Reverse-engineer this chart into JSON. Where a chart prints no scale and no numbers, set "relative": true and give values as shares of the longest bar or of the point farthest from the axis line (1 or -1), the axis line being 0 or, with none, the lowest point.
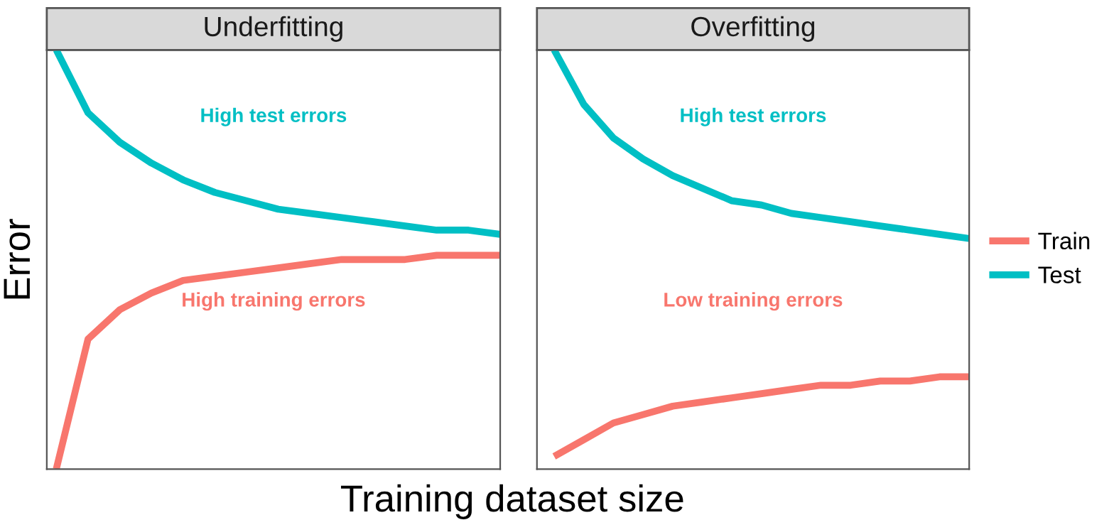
{
  "chart_data": [
    {
      "type": "line",
      "title": "Underfitting",
      "xlabel": "Training dataset size",
      "ylabel": "Error",
      "relative": true,
      "legend": "right",
      "marker": "none",
      "line_style": "solid",
      "categories": [
        null,
        null,
        null,
        null,
        null,
        null,
        null,
        null,
        null,
        null,
        null,
        null,
        null,
        null,
        null
      ],
      "annotations": [
        "High test errors",
        "High training errors"
      ],
      "series": [
        {
          "name": "Train",
          "color": "#f8766d",
          "values": [
            0,
            0.31,
            0.38,
            0.42,
            0.45,
            0.46,
            0.47,
            0.48,
            0.49,
            0.5,
            0.5,
            0.5,
            0.51,
            0.51,
            0.51
          ]
        },
        {
          "name": "Test",
          "color": "#00bfc4",
          "values": [
            1.0,
            0.85,
            0.78,
            0.73,
            0.69,
            0.66,
            0.64,
            0.62,
            0.61,
            0.6,
            0.59,
            0.58,
            0.57,
            0.57,
            0.56
          ]
        }
      ]
    },
    {
      "type": "line",
      "title": "Overfitting",
      "relative": true,
      "marker": "none",
      "line_style": "solid",
      "categories": [
        null,
        null,
        null,
        null,
        null,
        null,
        null,
        null,
        null,
        null,
        null,
        null,
        null,
        null,
        null
      ],
      "annotations": [
        "High test errors",
        "Low training errors"
      ],
      "series": [
        {
          "color": "#f8766d",
          "values": [
            0.03,
            0.07,
            0.11,
            0.13,
            0.15,
            0.16,
            0.17,
            0.18,
            0.19,
            0.2,
            0.2,
            0.21,
            0.21,
            0.22,
            0.22
          ]
        },
        {
          "color": "#00bfc4",
          "values": [
            1.0,
            0.87,
            0.79,
            0.74,
            0.7,
            0.67,
            0.64,
            0.63,
            0.61,
            0.6,
            0.59,
            0.58,
            0.57,
            0.56,
            0.55
          ]
        }
      ]
    }
  ]
}
